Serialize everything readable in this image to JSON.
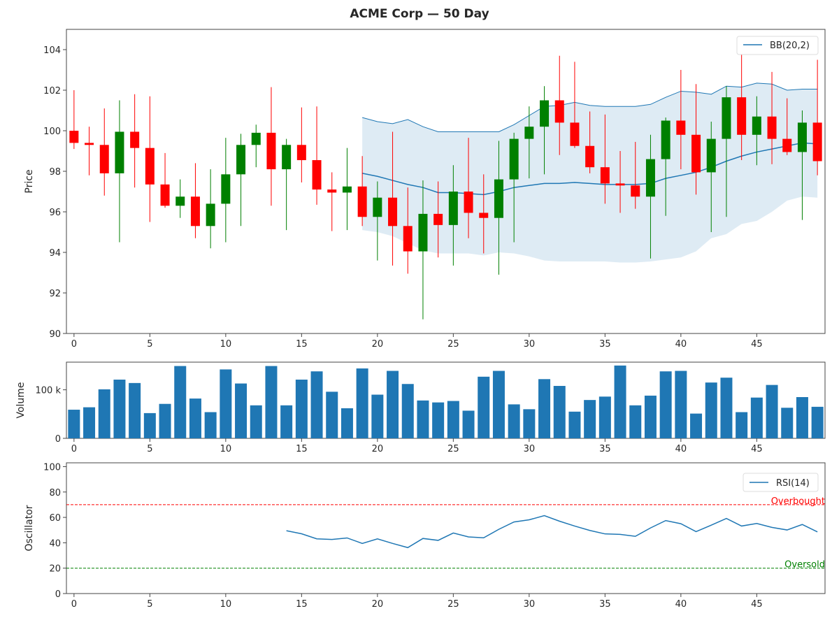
{
  "chart_data": [
    {
      "type": "candlestick",
      "title": "ACME Corp — 50 Day",
      "ylabel": "Price",
      "xlim": [
        -0.5,
        49.5
      ],
      "ylim": [
        90,
        105
      ],
      "yticks": [
        90,
        92,
        94,
        96,
        98,
        100,
        102,
        104
      ],
      "xticks": [
        0,
        5,
        10,
        15,
        20,
        25,
        30,
        35,
        40,
        45
      ],
      "up_color": "#008000",
      "down_color": "#ff0000",
      "legend": {
        "label": "BB(20,2)",
        "placement": "top-right"
      },
      "ohlc": [
        [
          100.0,
          102.0,
          99.1,
          99.4
        ],
        [
          99.4,
          100.2,
          97.8,
          99.3
        ],
        [
          99.3,
          101.1,
          96.8,
          97.9
        ],
        [
          97.9,
          101.5,
          94.5,
          99.95
        ],
        [
          99.95,
          101.8,
          97.2,
          99.15
        ],
        [
          99.15,
          101.7,
          95.5,
          97.35
        ],
        [
          97.35,
          98.9,
          96.2,
          96.3
        ],
        [
          96.3,
          97.6,
          95.7,
          96.75
        ],
        [
          96.75,
          98.4,
          94.7,
          95.3
        ],
        [
          95.3,
          98.1,
          94.2,
          96.4
        ],
        [
          96.4,
          99.65,
          94.5,
          97.85
        ],
        [
          97.85,
          99.85,
          95.3,
          99.3
        ],
        [
          99.3,
          100.3,
          98.2,
          99.9
        ],
        [
          99.9,
          102.15,
          96.3,
          98.1
        ],
        [
          98.1,
          99.6,
          95.1,
          99.3
        ],
        [
          99.3,
          101.15,
          97.45,
          98.55
        ],
        [
          98.55,
          101.2,
          96.35,
          97.1
        ],
        [
          97.1,
          97.95,
          95.05,
          96.95
        ],
        [
          96.95,
          99.15,
          95.1,
          97.25
        ],
        [
          97.25,
          98.75,
          95.3,
          95.75
        ],
        [
          95.75,
          97.5,
          93.6,
          96.7
        ],
        [
          96.7,
          99.95,
          93.35,
          95.3
        ],
        [
          95.3,
          97.2,
          92.95,
          94.05
        ],
        [
          94.05,
          97.55,
          90.7,
          95.9
        ],
        [
          95.9,
          97.5,
          93.75,
          95.35
        ],
        [
          95.35,
          98.3,
          93.35,
          97.0
        ],
        [
          97.0,
          99.65,
          94.7,
          95.95
        ],
        [
          95.95,
          97.85,
          93.95,
          95.7
        ],
        [
          95.7,
          99.5,
          92.9,
          97.6
        ],
        [
          97.6,
          99.9,
          94.5,
          99.6
        ],
        [
          99.6,
          101.2,
          97.65,
          100.2
        ],
        [
          100.2,
          102.2,
          97.85,
          101.5
        ],
        [
          101.5,
          103.7,
          98.8,
          100.4
        ],
        [
          100.4,
          103.4,
          99.15,
          99.25
        ],
        [
          99.25,
          100.95,
          97.9,
          98.2
        ],
        [
          98.2,
          100.8,
          96.4,
          97.4
        ],
        [
          97.4,
          99.0,
          95.95,
          97.3
        ],
        [
          97.3,
          99.45,
          96.15,
          96.75
        ],
        [
          96.75,
          99.8,
          93.7,
          98.6
        ],
        [
          98.6,
          100.65,
          95.8,
          100.5
        ],
        [
          100.5,
          103.0,
          98.1,
          99.8
        ],
        [
          99.8,
          102.3,
          96.85,
          97.95
        ],
        [
          97.95,
          100.45,
          95.0,
          99.6
        ],
        [
          99.6,
          102.2,
          95.75,
          101.65
        ],
        [
          101.65,
          104.0,
          98.55,
          99.8
        ],
        [
          99.8,
          101.7,
          98.3,
          100.7
        ],
        [
          100.7,
          102.9,
          98.35,
          99.6
        ],
        [
          99.6,
          101.6,
          98.8,
          98.95
        ],
        [
          98.95,
          101.0,
          95.6,
          100.4
        ],
        [
          100.4,
          103.5,
          97.8,
          98.5
        ]
      ],
      "bollinger": {
        "start": 19,
        "upper": [
          100.65,
          100.45,
          100.35,
          100.55,
          100.2,
          99.95,
          99.95,
          99.95,
          99.95,
          99.95,
          100.3,
          100.75,
          101.2,
          101.25,
          101.4,
          101.25,
          101.2,
          101.2,
          101.2,
          101.3,
          101.65,
          101.95,
          101.9,
          101.8,
          102.2,
          102.15,
          102.35,
          102.3,
          102.0,
          102.05,
          102.05
        ],
        "middle": [
          97.9,
          97.75,
          97.55,
          97.35,
          97.2,
          96.95,
          96.95,
          96.9,
          96.85,
          97.0,
          97.2,
          97.3,
          97.4,
          97.4,
          97.45,
          97.4,
          97.35,
          97.35,
          97.35,
          97.4,
          97.65,
          97.8,
          97.95,
          98.2,
          98.5,
          98.75,
          98.95,
          99.1,
          99.25,
          99.4,
          99.35
        ],
        "lower": [
          95.1,
          95.0,
          94.8,
          94.45,
          94.1,
          93.95,
          93.95,
          93.95,
          93.85,
          94.0,
          93.95,
          93.8,
          93.6,
          93.55,
          93.55,
          93.55,
          93.55,
          93.5,
          93.5,
          93.55,
          93.65,
          93.75,
          94.05,
          94.7,
          94.9,
          95.4,
          95.55,
          96.0,
          96.55,
          96.75,
          96.7
        ],
        "line_color": "#1f77b4"
      }
    },
    {
      "type": "bar",
      "ylabel": "Volume",
      "xlim": [
        -0.5,
        49.5
      ],
      "ylim": [
        0,
        157000
      ],
      "yticks": [
        {
          "value": 0,
          "label": "0"
        },
        {
          "value": 100000,
          "label": "100 k"
        }
      ],
      "xticks": [
        0,
        5,
        10,
        15,
        20,
        25,
        30,
        35,
        40,
        45
      ],
      "color": "#1f77b4",
      "values": [
        59000,
        64000,
        101000,
        121000,
        114000,
        52000,
        71000,
        149000,
        82000,
        54000,
        142000,
        113000,
        68000,
        149000,
        68000,
        121000,
        138000,
        96000,
        62000,
        144000,
        90000,
        139000,
        112000,
        78000,
        74000,
        77000,
        57000,
        127000,
        139000,
        70000,
        60000,
        122000,
        108000,
        55000,
        79000,
        86000,
        150000,
        68000,
        88000,
        138000,
        139000,
        51000,
        115000,
        125000,
        54000,
        84000,
        110000,
        63000,
        85000,
        65000
      ]
    },
    {
      "type": "line",
      "ylabel": "Oscillator",
      "xlim": [
        -0.5,
        49.5
      ],
      "ylim": [
        0,
        103
      ],
      "yticks": [
        0,
        20,
        40,
        60,
        80,
        100
      ],
      "xticks": [
        0,
        5,
        10,
        15,
        20,
        25,
        30,
        35,
        40,
        45
      ],
      "legend": {
        "label": "RSI(14)",
        "placement": "top-right"
      },
      "color": "#1f77b4",
      "start": 14,
      "values": [
        49.5,
        47.1,
        43.1,
        42.6,
        43.8,
        39.5,
        43.1,
        39.5,
        36.2,
        43.4,
        41.9,
        47.7,
        44.6,
        43.9,
        50.6,
        56.4,
        58.1,
        61.4,
        57.0,
        53.2,
        49.7,
        47.0,
        46.6,
        45.1,
        51.7,
        57.5,
        55.0,
        48.8,
        53.9,
        59.2,
        53.2,
        55.2,
        52.1,
        50.1,
        54.4,
        48.6
      ],
      "hlines": [
        {
          "value": 70,
          "label": "Overbought",
          "color": "#ff0000"
        },
        {
          "value": 20,
          "label": "Oversold",
          "color": "#008000"
        }
      ]
    }
  ]
}
